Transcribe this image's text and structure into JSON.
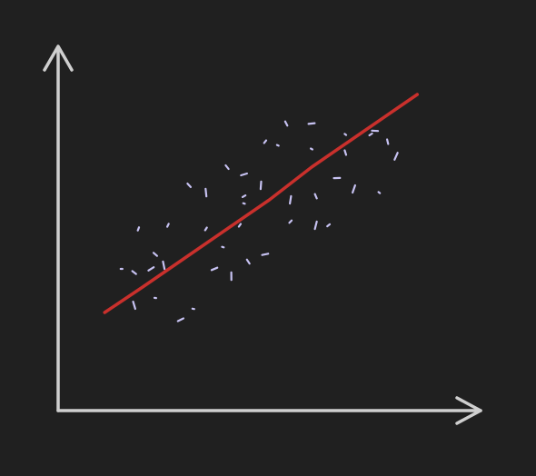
{
  "chart_data": {
    "type": "scatter",
    "grid": false,
    "legend": false,
    "xlim": [
      0,
      100
    ],
    "ylim": [
      0,
      100
    ],
    "series": [
      {
        "kind": "points",
        "values": [
          {
            "x": 15,
            "y": 39
          },
          {
            "x": 18,
            "y": 38
          },
          {
            "x": 18,
            "y": 29
          },
          {
            "x": 19,
            "y": 50
          },
          {
            "x": 22,
            "y": 39
          },
          {
            "x": 23,
            "y": 31
          },
          {
            "x": 23,
            "y": 43
          },
          {
            "x": 25,
            "y": 40
          },
          {
            "x": 26,
            "y": 51
          },
          {
            "x": 29,
            "y": 25
          },
          {
            "x": 32,
            "y": 28
          },
          {
            "x": 31,
            "y": 62
          },
          {
            "x": 35,
            "y": 60
          },
          {
            "x": 35,
            "y": 50
          },
          {
            "x": 37,
            "y": 39
          },
          {
            "x": 39,
            "y": 45
          },
          {
            "x": 40,
            "y": 67
          },
          {
            "x": 41,
            "y": 37
          },
          {
            "x": 43,
            "y": 51
          },
          {
            "x": 44,
            "y": 65
          },
          {
            "x": 44,
            "y": 57
          },
          {
            "x": 45,
            "y": 41
          },
          {
            "x": 48,
            "y": 62
          },
          {
            "x": 49,
            "y": 74
          },
          {
            "x": 49,
            "y": 43
          },
          {
            "x": 52,
            "y": 73
          },
          {
            "x": 54,
            "y": 79
          },
          {
            "x": 55,
            "y": 58
          },
          {
            "x": 55,
            "y": 52
          },
          {
            "x": 60,
            "y": 79
          },
          {
            "x": 60,
            "y": 72
          },
          {
            "x": 61,
            "y": 59
          },
          {
            "x": 61,
            "y": 51
          },
          {
            "x": 64,
            "y": 51
          },
          {
            "x": 66,
            "y": 64
          },
          {
            "x": 68,
            "y": 76
          },
          {
            "x": 68,
            "y": 71
          },
          {
            "x": 70,
            "y": 61
          },
          {
            "x": 74,
            "y": 76
          },
          {
            "x": 75,
            "y": 77
          },
          {
            "x": 76,
            "y": 60
          },
          {
            "x": 78,
            "y": 74
          },
          {
            "x": 80,
            "y": 70
          },
          {
            "x": 44,
            "y": 59
          }
        ]
      },
      {
        "kind": "trend-line",
        "color": "#c9302c",
        "values": [
          {
            "x": 11,
            "y": 27
          },
          {
            "x": 20,
            "y": 34
          },
          {
            "x": 30,
            "y": 42
          },
          {
            "x": 40,
            "y": 50
          },
          {
            "x": 50,
            "y": 58
          },
          {
            "x": 60,
            "y": 67
          },
          {
            "x": 70,
            "y": 75
          },
          {
            "x": 80,
            "y": 83
          },
          {
            "x": 85,
            "y": 87
          }
        ]
      }
    ]
  },
  "colors": {
    "background": "#202020",
    "axis": "#cfcfcf",
    "points": "#c7c2f2",
    "trend": "#c9302c"
  }
}
